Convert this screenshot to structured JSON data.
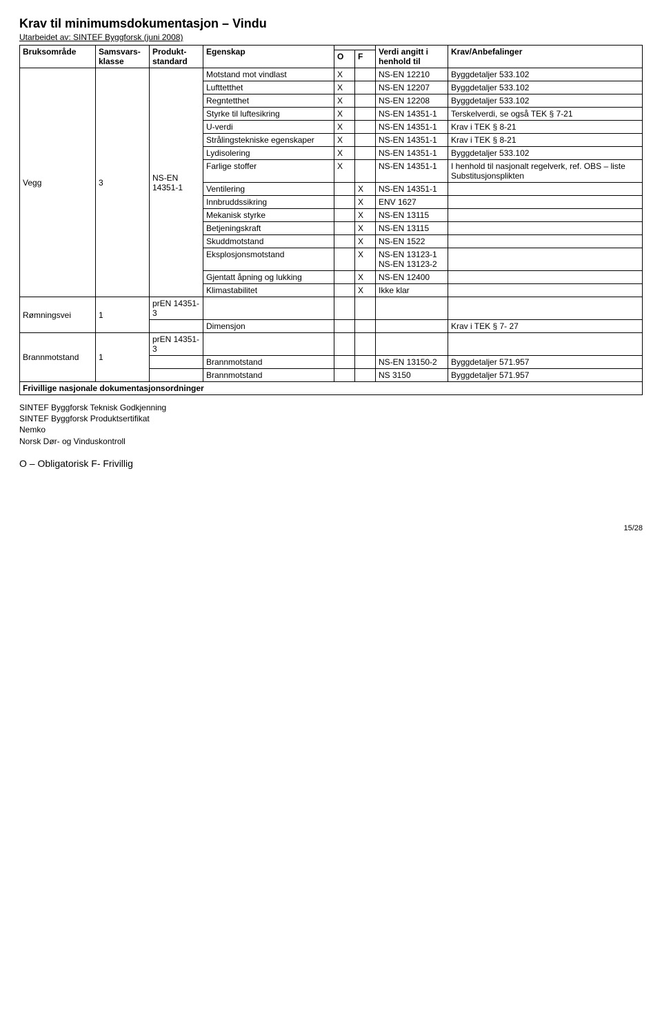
{
  "title": "Krav til minimumsdokumentasjon – Vindu",
  "subline": "Utarbeidet av: SINTEF Byggforsk (juni 2008)",
  "headers": {
    "bruksomrade": "Bruksområde",
    "samsvarsklasse": "Samsvars-klasse",
    "produktstandard": "Produkt-standard",
    "egenskap": "Egenskap",
    "o": "O",
    "f": "F",
    "verdi": "Verdi angitt i henhold til",
    "krav": "Krav/Anbefalinger"
  },
  "vegg": {
    "bruksomrade": "Vegg",
    "samsvarsklasse": "3",
    "produktstandard": "NS-EN 14351-1",
    "rows": [
      {
        "egenskap": "Motstand mot vindlast",
        "o": "X",
        "f": "",
        "verdi": "NS-EN 12210",
        "krav": "Byggdetaljer 533.102"
      },
      {
        "egenskap": "Lufttetthet",
        "o": "X",
        "f": "",
        "verdi": "NS-EN 12207",
        "krav": "Byggdetaljer 533.102"
      },
      {
        "egenskap": "Regntetthet",
        "o": "X",
        "f": "",
        "verdi": "NS-EN 12208",
        "krav": "Byggdetaljer 533.102"
      },
      {
        "egenskap": "Styrke til luftesikring",
        "o": "X",
        "f": "",
        "verdi": "NS-EN 14351-1",
        "krav": "Terskelverdi, se også TEK § 7-21"
      },
      {
        "egenskap": "U-verdi",
        "o": "X",
        "f": "",
        "verdi": "NS-EN 14351-1",
        "krav": "Krav i TEK § 8-21"
      },
      {
        "egenskap": "Strålingstekniske egenskaper",
        "o": "X",
        "f": "",
        "verdi": "NS-EN 14351-1",
        "krav": "Krav i TEK § 8-21"
      },
      {
        "egenskap": "Lydisolering",
        "o": "X",
        "f": "",
        "verdi": "NS-EN 14351-1",
        "krav": "Byggdetaljer 533.102"
      },
      {
        "egenskap": "Farlige stoffer",
        "o": "X",
        "f": "",
        "verdi": "NS-EN 14351-1",
        "krav": "I henhold til nasjonalt regelverk, ref. OBS – liste Substitusjonsplikten"
      },
      {
        "egenskap": "Ventilering",
        "o": "",
        "f": "X",
        "verdi": "NS-EN 14351-1",
        "krav": ""
      },
      {
        "egenskap": "Innbruddssikring",
        "o": "",
        "f": "X",
        "verdi": "ENV 1627",
        "krav": ""
      },
      {
        "egenskap": "Mekanisk styrke",
        "o": "",
        "f": "X",
        "verdi": "NS-EN 13115",
        "krav": ""
      },
      {
        "egenskap": "Betjeningskraft",
        "o": "",
        "f": "X",
        "verdi": "NS-EN 13115",
        "krav": ""
      },
      {
        "egenskap": "Skuddmotstand",
        "o": "",
        "f": "X",
        "verdi": "NS-EN 1522",
        "krav": ""
      },
      {
        "egenskap": "Eksplosjonsmotstand",
        "o": "",
        "f": "X",
        "verdi": "NS-EN 13123-1 NS-EN 13123-2",
        "krav": ""
      },
      {
        "egenskap": "Gjentatt åpning og lukking",
        "o": "",
        "f": "X",
        "verdi": "NS-EN 12400",
        "krav": ""
      },
      {
        "egenskap": "Klimastabilitet",
        "o": "",
        "f": "X",
        "verdi": "Ikke klar",
        "krav": ""
      }
    ]
  },
  "romningsvei": {
    "bruksomrade": "Rømningsvei",
    "samsvarsklasse": "1",
    "produktstandard": "prEN 14351-3",
    "rows": [
      {
        "egenskap": "",
        "o": "",
        "f": "",
        "verdi": "",
        "krav": ""
      },
      {
        "egenskap": "Dimensjon",
        "o": "",
        "f": "",
        "verdi": "",
        "krav": "Krav i TEK § 7- 27"
      }
    ]
  },
  "brannmotstand": {
    "bruksomrade": "Brannmotstand",
    "samsvarsklasse": "1",
    "produktstandard": "prEN 14351-3",
    "rows": [
      {
        "egenskap": "",
        "o": "",
        "f": "",
        "verdi": "",
        "krav": ""
      },
      {
        "egenskap": "Brannmotstand",
        "o": "",
        "f": "",
        "verdi": "NS-EN 13150-2",
        "krav": "Byggdetaljer 571.957"
      },
      {
        "egenskap": "Brannmotstand",
        "o": "",
        "f": "",
        "verdi": "NS 3150",
        "krav": "Byggdetaljer 571.957"
      }
    ]
  },
  "frivillige_header": "Frivillige nasjonale dokumentasjonsordninger",
  "frivillige_list": [
    "SINTEF Byggforsk Teknisk Godkjenning",
    "SINTEF Byggforsk Produktsertifikat",
    "Nemko",
    "Norsk Dør- og Vinduskontroll"
  ],
  "legend": "O – Obligatorisk      F- Frivillig",
  "page_number": "15/28"
}
